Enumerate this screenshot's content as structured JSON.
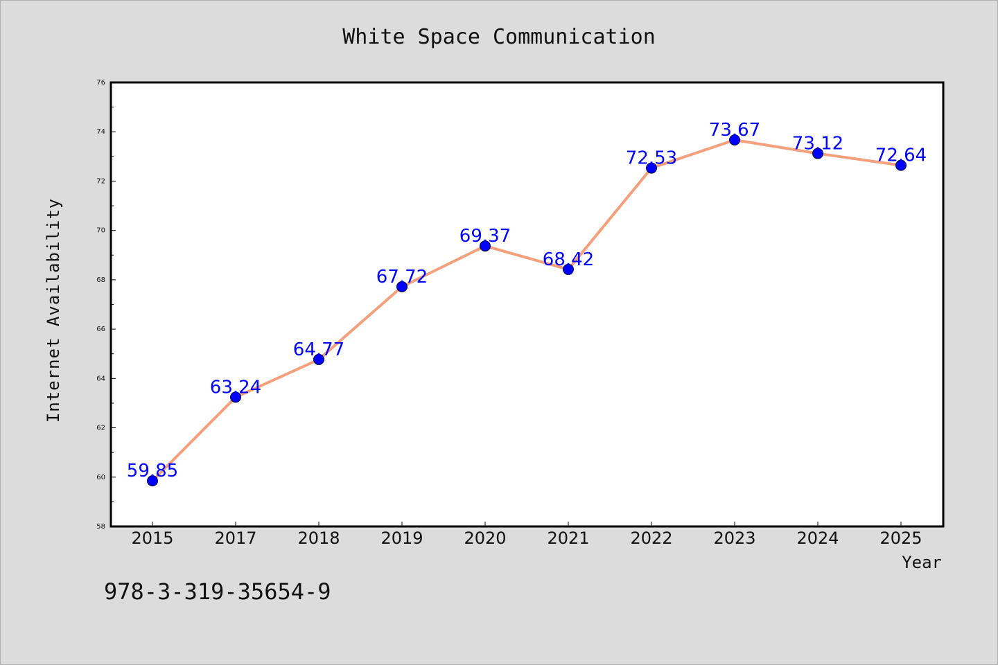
{
  "chart_data": {
    "type": "line",
    "title": "White Space Communication",
    "xlabel": "Year",
    "ylabel": "Internet Availability",
    "categories": [
      "2015",
      "2017",
      "2018",
      "2019",
      "2020",
      "2021",
      "2022",
      "2023",
      "2024",
      "2025"
    ],
    "series": [
      {
        "values": [
          59.85,
          63.24,
          64.77,
          67.72,
          69.37,
          68.42,
          72.53,
          73.67,
          73.12,
          72.64
        ],
        "line_color": "#f4a07c",
        "marker_color": "#0000ff"
      }
    ],
    "data_labels": [
      "59.85",
      "63.24",
      "64.77",
      "67.72",
      "69.37",
      "68.42",
      "72.53",
      "73.67",
      "73.12",
      "72.64"
    ],
    "ylim": [
      58,
      76
    ],
    "yticks": [
      "58",
      "60",
      "62",
      "64",
      "66",
      "68",
      "70",
      "72",
      "74",
      "76"
    ],
    "grid": false,
    "label_color": "#0000ff"
  },
  "footer": {
    "isbn": "978-3-319-35654-9"
  }
}
